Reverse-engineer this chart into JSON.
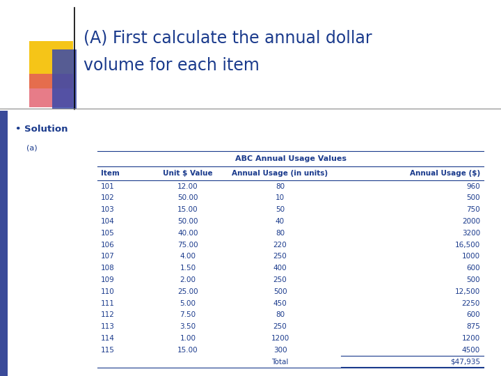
{
  "title_line1": "(A) First calculate the annual dollar",
  "title_line2": "volume for each item",
  "title_color": "#1a3a8c",
  "title_fontsize": 17,
  "bg_top": "#ffffff",
  "bg_bottom": "#bfc9bf",
  "solution_label": "Solution",
  "sub_label": "(a)",
  "table_title": "ABC Annual Usage Values",
  "headers": [
    "Item",
    "Unit $ Value",
    "Annual Usage (in units)",
    "Annual Usage ($)"
  ],
  "rows": [
    [
      "101",
      "12.00",
      "80",
      "960"
    ],
    [
      "102",
      "50.00",
      "10",
      "500"
    ],
    [
      "103",
      "15.00",
      "50",
      "750"
    ],
    [
      "104",
      "50.00",
      "40",
      "2000"
    ],
    [
      "105",
      "40.00",
      "80",
      "3200"
    ],
    [
      "106",
      "75.00",
      "220",
      "16,500"
    ],
    [
      "107",
      "4.00",
      "250",
      "1000"
    ],
    [
      "108",
      "1.50",
      "400",
      "600"
    ],
    [
      "109",
      "2.00",
      "250",
      "500"
    ],
    [
      "110",
      "25.00",
      "500",
      "12,500"
    ],
    [
      "111",
      "5.00",
      "450",
      "2250"
    ],
    [
      "112",
      "7.50",
      "80",
      "600"
    ],
    [
      "113",
      "3.50",
      "250",
      "875"
    ],
    [
      "114",
      "1.00",
      "1200",
      "1200"
    ],
    [
      "115",
      "15.00",
      "300",
      "4500"
    ]
  ],
  "total_label": "Total",
  "total_value": "$47,935",
  "header_color": "#1a3a8c",
  "data_color": "#1a3a8c",
  "table_bg": "#bfc9bf",
  "yellow_color": "#f5c518",
  "red_color": "#e05060",
  "blue_rect_color": "#3a4aaa",
  "left_bar_color": "#3a4a99"
}
